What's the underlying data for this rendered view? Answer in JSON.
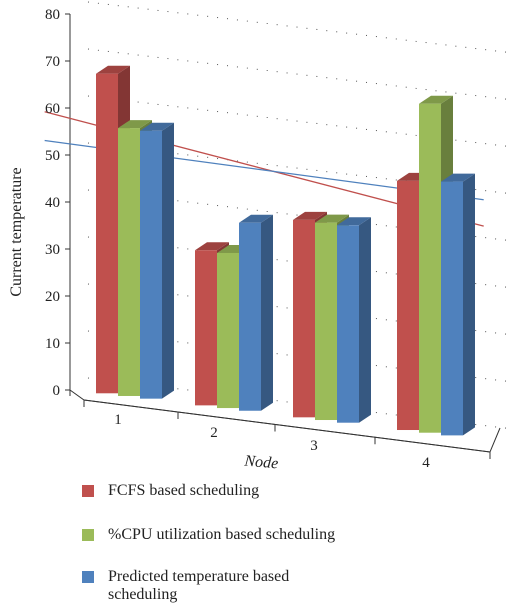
{
  "chart_data": {
    "type": "bar",
    "title": "",
    "xlabel": "Node",
    "ylabel": "Current temperature",
    "categories": [
      "1",
      "2",
      "3",
      "4"
    ],
    "ylim": [
      0,
      80
    ],
    "yticks": [
      0,
      10,
      20,
      30,
      40,
      50,
      60,
      70,
      80
    ],
    "grid": true,
    "legend_position": "bottom",
    "series": [
      {
        "name": "FCFS based scheduling",
        "values": [
          68,
          33,
          42,
          53
        ],
        "color": "#c0504d"
      },
      {
        "name": "%CPU utilization based scheduling",
        "values": [
          57,
          33,
          42,
          70
        ],
        "color": "#9bbb59"
      },
      {
        "name": "Predicted temperature based scheduling",
        "values": [
          57,
          40,
          42,
          54
        ],
        "color": "#4f81bd"
      }
    ],
    "trend_lines": [
      {
        "series": "FCFS based scheduling",
        "color": "#c0504d"
      },
      {
        "series": "Predicted temperature based scheduling",
        "color": "#4f81bd"
      }
    ]
  }
}
